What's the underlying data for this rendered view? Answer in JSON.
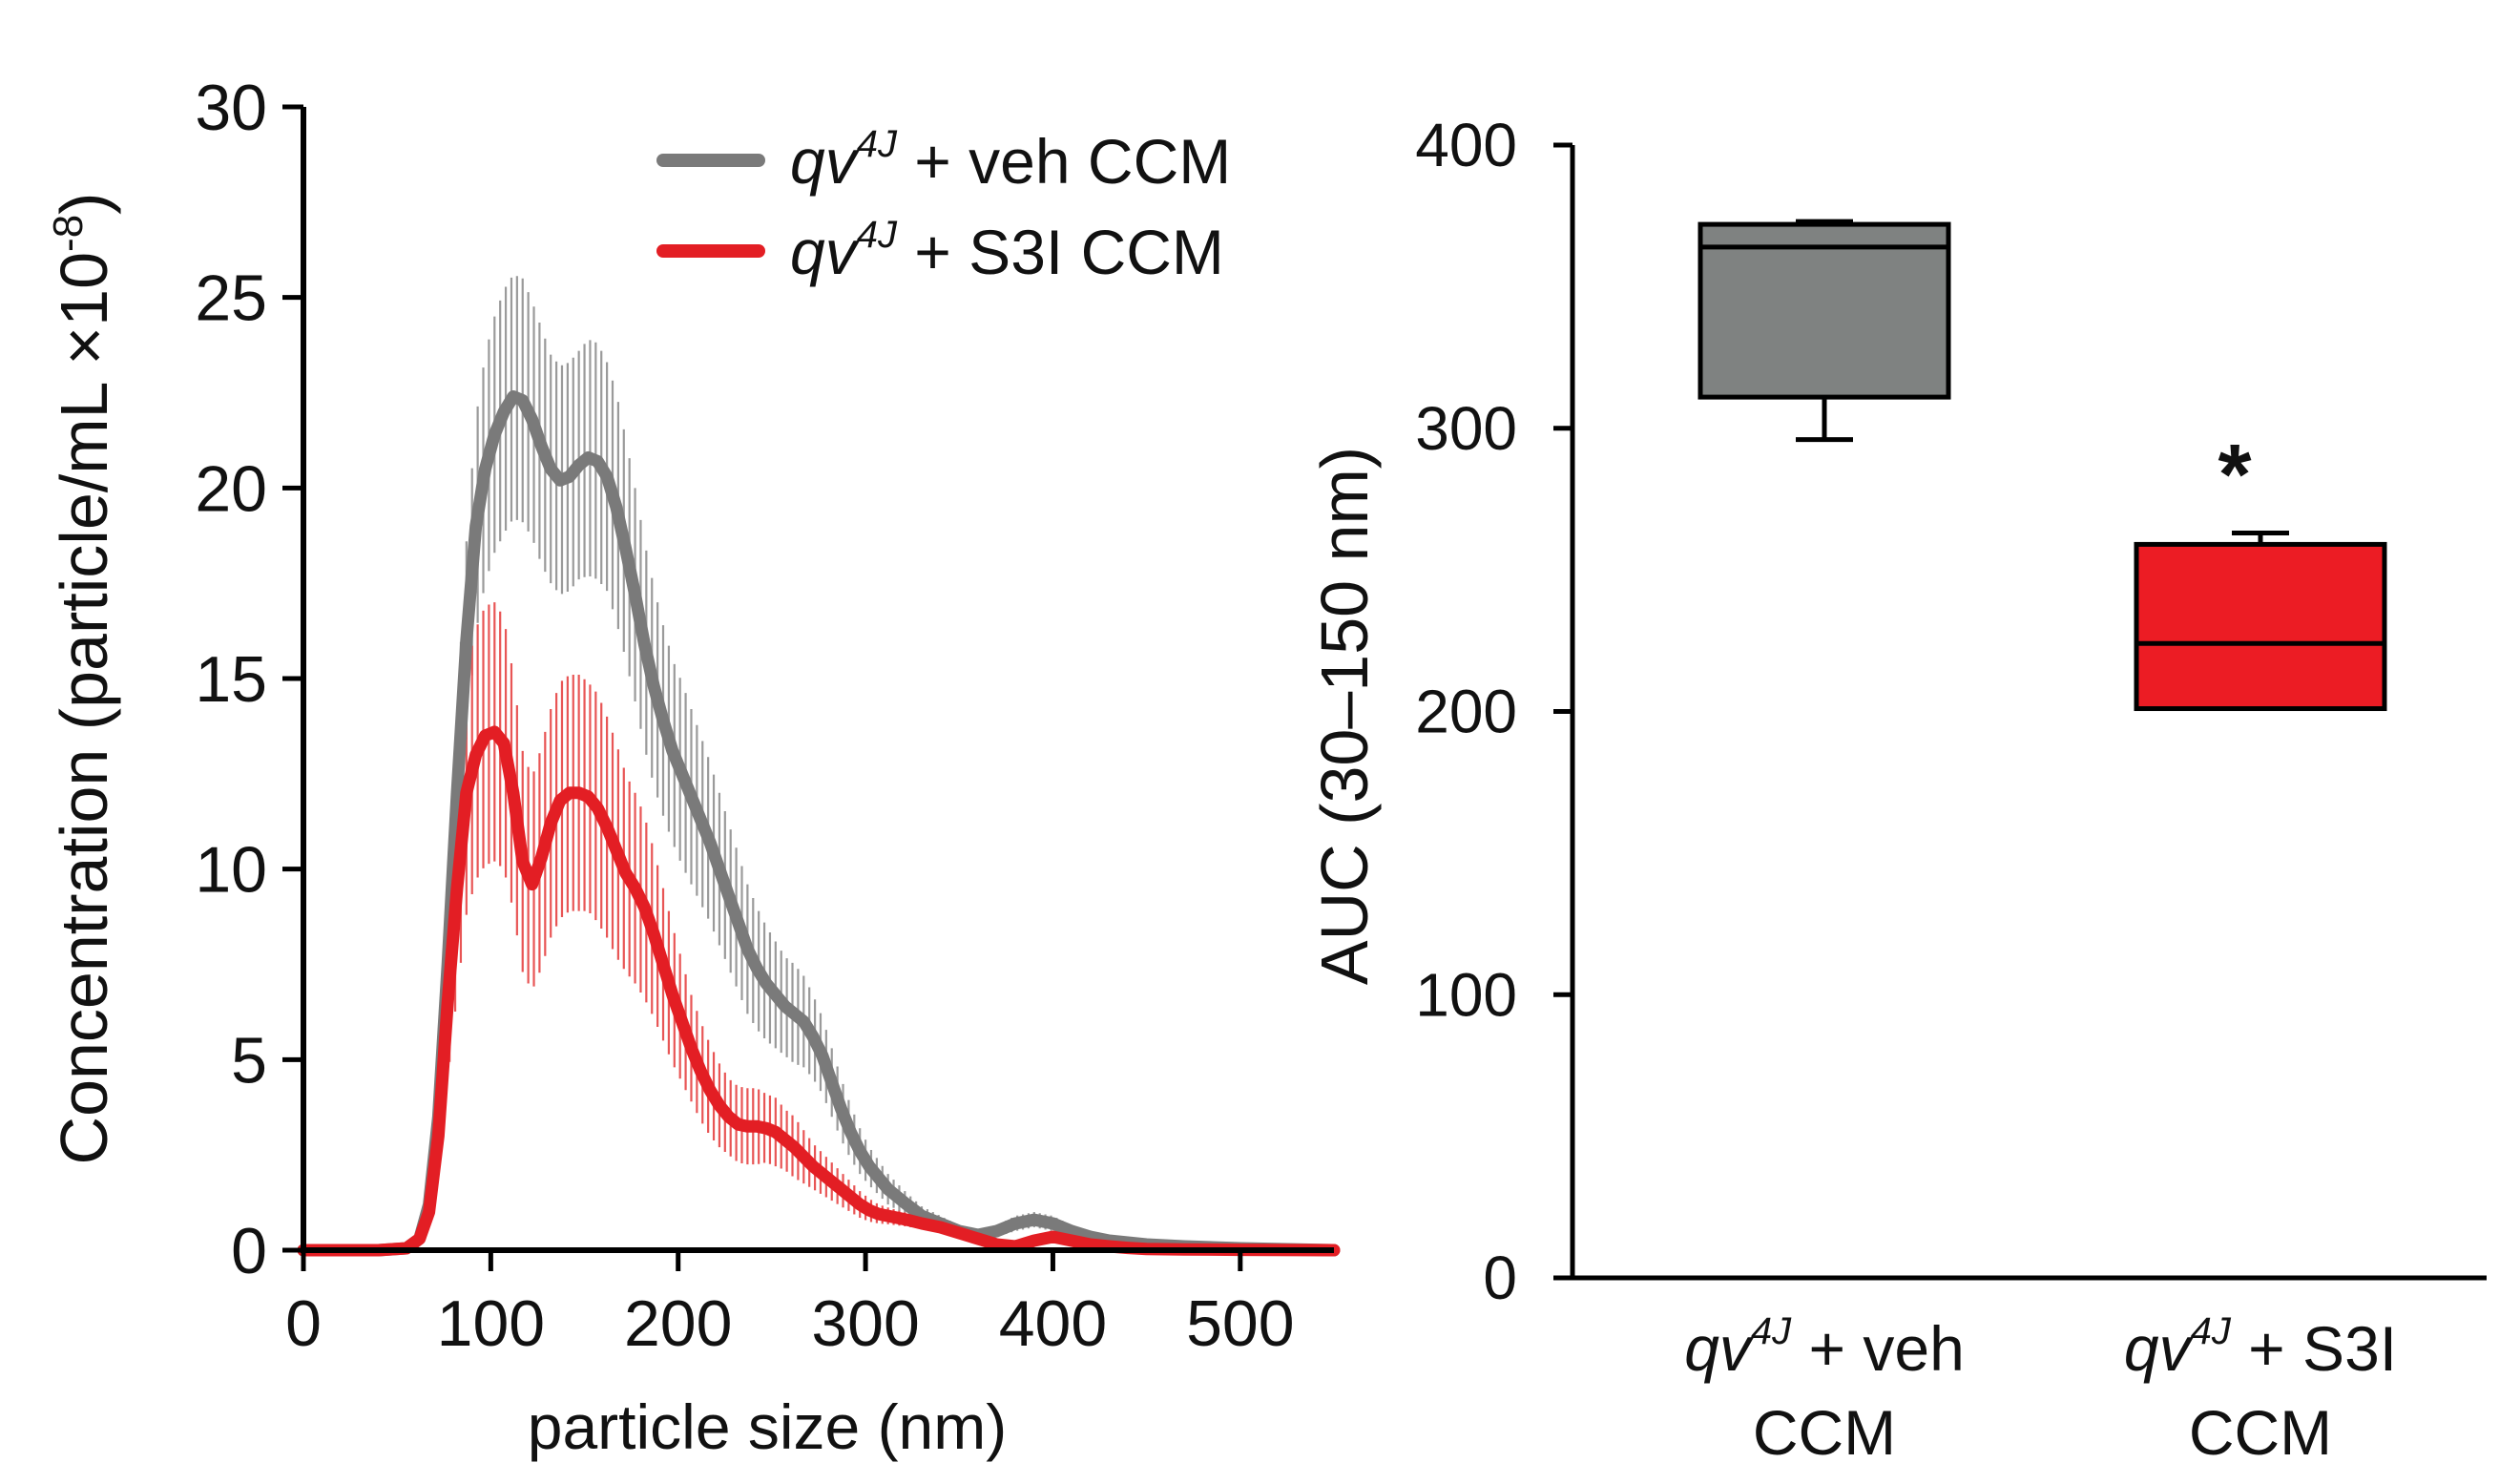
{
  "chart_data": [
    {
      "type": "line",
      "xlabel": "particle size (nm)",
      "ylabel": "Concentration (particle/mL ×10",
      "ylabel_exp": "-8",
      "ylabel_close": ")",
      "xlim": [
        0,
        550
      ],
      "ylim": [
        0,
        30
      ],
      "xticks": [
        0,
        100,
        200,
        300,
        400,
        500
      ],
      "yticks": [
        0,
        5,
        10,
        15,
        20,
        25,
        30
      ],
      "legend": {
        "position": "top-right",
        "prefix": "qv",
        "superscript": "4J"
      },
      "series": [
        {
          "name": "qv4J + veh CCM",
          "label_rest": " + veh CCM",
          "color": "#7a7a7a",
          "errcolor": "#9a9a9a",
          "x": [
            0,
            20,
            40,
            55,
            62,
            67,
            72,
            77,
            82,
            87,
            92,
            97,
            102,
            107,
            112,
            117,
            122,
            127,
            132,
            137,
            142,
            147,
            152,
            157,
            162,
            167,
            172,
            177,
            182,
            187,
            192,
            197,
            202,
            207,
            212,
            217,
            222,
            227,
            232,
            237,
            242,
            247,
            252,
            257,
            262,
            267,
            272,
            277,
            282,
            287,
            292,
            297,
            302,
            307,
            312,
            317,
            322,
            330,
            340,
            350,
            360,
            370,
            380,
            390,
            400,
            410,
            420,
            430,
            440,
            450,
            470,
            500,
            550
          ],
          "y": [
            0,
            0,
            0,
            0.05,
            0.3,
            1.2,
            3.5,
            7.5,
            12,
            16,
            19,
            20.5,
            21.4,
            22,
            22.4,
            22.3,
            21.8,
            21.1,
            20.5,
            20.2,
            20.3,
            20.6,
            20.8,
            20.7,
            20.3,
            19.5,
            18.4,
            17.2,
            15.9,
            14.8,
            13.9,
            13.1,
            12.5,
            11.9,
            11.3,
            10.7,
            10.0,
            9.3,
            8.6,
            7.9,
            7.4,
            7.0,
            6.7,
            6.4,
            6.2,
            6.0,
            5.6,
            5.1,
            4.4,
            3.7,
            3.1,
            2.6,
            2.2,
            1.9,
            1.6,
            1.4,
            1.2,
            0.9,
            0.7,
            0.5,
            0.4,
            0.5,
            0.7,
            0.8,
            0.7,
            0.5,
            0.35,
            0.25,
            0.2,
            0.15,
            0.1,
            0.05,
            0
          ],
          "err": [
            0,
            0,
            0,
            0.02,
            0.1,
            0.3,
            0.8,
            1.5,
            2.2,
            2.6,
            2.8,
            3.0,
            3.1,
            3.2,
            3.2,
            3.2,
            3.1,
            3.1,
            3.0,
            3.0,
            3.0,
            3.0,
            3.1,
            3.1,
            3.0,
            3.0,
            2.9,
            2.8,
            2.7,
            2.6,
            2.5,
            2.4,
            2.4,
            2.3,
            2.2,
            2.1,
            2.0,
            1.9,
            1.8,
            1.7,
            1.6,
            1.5,
            1.4,
            1.3,
            1.3,
            1.2,
            1.1,
            1.0,
            0.9,
            0.8,
            0.7,
            0.6,
            0.5,
            0.45,
            0.4,
            0.35,
            0.3,
            0.25,
            0.2,
            0.15,
            0.12,
            0.15,
            0.2,
            0.2,
            0.2,
            0.15,
            0.1,
            0.08,
            0.06,
            0.05,
            0.03,
            0.02,
            0
          ]
        },
        {
          "name": "qv4J + S3I CCM",
          "label_rest": " + S3I CCM",
          "color": "#e31e24",
          "errcolor": "#e85555",
          "x": [
            0,
            20,
            40,
            55,
            62,
            67,
            72,
            77,
            82,
            87,
            92,
            97,
            102,
            107,
            112,
            117,
            122,
            127,
            132,
            137,
            142,
            147,
            152,
            157,
            162,
            167,
            172,
            177,
            182,
            187,
            192,
            197,
            202,
            207,
            212,
            217,
            222,
            227,
            232,
            237,
            242,
            247,
            252,
            257,
            262,
            267,
            272,
            277,
            282,
            287,
            292,
            297,
            302,
            307,
            312,
            317,
            322,
            330,
            340,
            350,
            360,
            370,
            380,
            390,
            400,
            410,
            420,
            430,
            440,
            450,
            470,
            500,
            550
          ],
          "y": [
            0,
            0,
            0,
            0.05,
            0.3,
            1.0,
            3.0,
            6.5,
            9.5,
            12.0,
            13.0,
            13.5,
            13.6,
            13.3,
            12.0,
            10.2,
            9.6,
            10.3,
            11.2,
            11.8,
            12.0,
            12.0,
            11.9,
            11.6,
            11.1,
            10.5,
            9.9,
            9.5,
            9.0,
            8.3,
            7.5,
            6.7,
            6.0,
            5.3,
            4.7,
            4.2,
            3.8,
            3.5,
            3.3,
            3.25,
            3.25,
            3.2,
            3.1,
            2.9,
            2.7,
            2.45,
            2.2,
            2.0,
            1.8,
            1.6,
            1.4,
            1.2,
            1.05,
            0.95,
            0.9,
            0.85,
            0.8,
            0.7,
            0.6,
            0.45,
            0.3,
            0.15,
            0.1,
            0.25,
            0.35,
            0.25,
            0.15,
            0.1,
            0.06,
            0.03,
            0.02,
            0.01,
            0
          ],
          "err": [
            0,
            0,
            0,
            0.02,
            0.1,
            0.4,
            1.0,
            2.0,
            2.8,
            3.2,
            3.3,
            3.4,
            3.4,
            3.3,
            3.1,
            2.9,
            2.8,
            2.9,
            3.0,
            3.1,
            3.1,
            3.1,
            3.0,
            3.0,
            2.9,
            2.8,
            2.6,
            2.5,
            2.4,
            2.2,
            2.0,
            1.8,
            1.6,
            1.4,
            1.3,
            1.2,
            1.1,
            1.0,
            1.0,
            1.0,
            1.0,
            0.9,
            0.9,
            0.8,
            0.8,
            0.7,
            0.6,
            0.55,
            0.5,
            0.45,
            0.4,
            0.35,
            0.3,
            0.25,
            0.22,
            0.2,
            0.18,
            0.15,
            0.12,
            0.1,
            0.08,
            0.05,
            0.05,
            0.08,
            0.1,
            0.08,
            0.05,
            0.03,
            0.02,
            0.01,
            0.01,
            0,
            0
          ]
        }
      ]
    },
    {
      "type": "box",
      "ylabel": "AUC (30–150 nm)",
      "ylim": [
        0,
        400
      ],
      "yticks": [
        0,
        100,
        200,
        300,
        400
      ],
      "groups": [
        {
          "label_prefix": "qv",
          "label_sup": "4J",
          "label_line1_rest": " + veh",
          "label_line2": "CCM",
          "color": "#7f8281",
          "whisker_low": 296,
          "q1": 311,
          "median": 364,
          "q3": 372,
          "whisker_high": 373,
          "annotation": ""
        },
        {
          "label_prefix": "qv",
          "label_sup": "4J",
          "label_line1_rest": " + S3I",
          "label_line2": "CCM",
          "color": "#ec1c24",
          "whisker_low": 201,
          "q1": 201,
          "median": 224,
          "q3": 259,
          "whisker_high": 263,
          "annotation": "*"
        }
      ]
    }
  ]
}
